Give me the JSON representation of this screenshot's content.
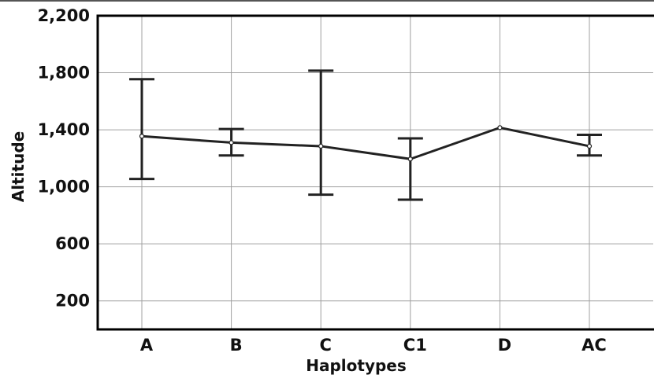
{
  "chart_data": {
    "type": "line",
    "title": "",
    "xlabel": "Haplotypes",
    "ylabel": "Altitude",
    "categories": [
      "A",
      "B",
      "C",
      "C1",
      "D",
      "AC"
    ],
    "series": [
      {
        "name": "",
        "values": [
          1355,
          1310,
          1285,
          1195,
          1415,
          1285
        ],
        "error_low": [
          1055,
          1220,
          945,
          910,
          1415,
          1220
        ],
        "error_high": [
          1755,
          1405,
          1815,
          1340,
          1415,
          1365
        ]
      }
    ],
    "ylim": [
      0,
      2200
    ],
    "yticks": [
      200,
      600,
      1000,
      1400,
      1800,
      2200
    ],
    "ytick_labels": [
      "200",
      "600",
      "1,000",
      "1,400",
      "1,800",
      "2,200"
    ],
    "grid": true,
    "legend": "none",
    "colors": {
      "line": "#222222",
      "grid": "#a0a0a0",
      "frame": "#000000"
    }
  }
}
